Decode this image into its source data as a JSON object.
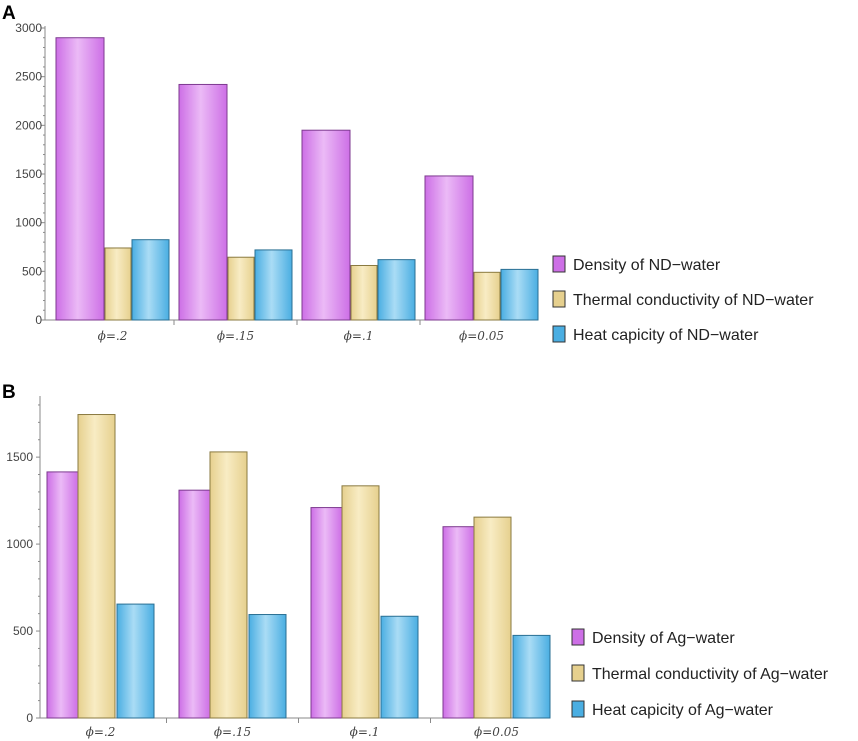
{
  "colors": {
    "purple": "#cd6fe6",
    "purple_light": "#ebbaf6",
    "tan": "#e6d08e",
    "tan_light": "#f8ecc4",
    "blue": "#4aaee2",
    "blue_light": "#aadcf5",
    "axis": "#8a8a8a"
  },
  "chart_data": [
    {
      "panel": "A",
      "type": "bar",
      "categories": [
        "ϕ=.2",
        "ϕ=.15",
        "ϕ=.1",
        "ϕ=0.05"
      ],
      "series": [
        {
          "name": "Density of ND−water",
          "color": "purple",
          "values": [
            2900,
            2420,
            1950,
            1480
          ]
        },
        {
          "name": "Thermal conductivity of ND−water",
          "color": "tan",
          "values": [
            740,
            645,
            560,
            490
          ]
        },
        {
          "name": "Heat capicity of ND−water",
          "color": "blue",
          "values": [
            825,
            720,
            620,
            520
          ]
        }
      ],
      "yticks": [
        0,
        500,
        1000,
        1500,
        2000,
        2500,
        3000
      ],
      "ylim": [
        0,
        3000
      ],
      "legend_position": "right"
    },
    {
      "panel": "B",
      "type": "bar",
      "categories": [
        "ϕ=.2",
        "ϕ=.15",
        "ϕ=.1",
        "ϕ=0.05"
      ],
      "series": [
        {
          "name": "Density of Ag−water",
          "color": "purple",
          "values": [
            1415,
            1310,
            1210,
            1100
          ]
        },
        {
          "name": "Thermal conductivity of Ag−water",
          "color": "tan",
          "values": [
            1745,
            1530,
            1335,
            1155
          ]
        },
        {
          "name": "Heat capicity of Ag−water",
          "color": "blue",
          "values": [
            655,
            595,
            585,
            475
          ]
        }
      ],
      "yticks": [
        0,
        500,
        1000,
        1500
      ],
      "ylim": [
        0,
        1840
      ],
      "legend_position": "right"
    }
  ]
}
